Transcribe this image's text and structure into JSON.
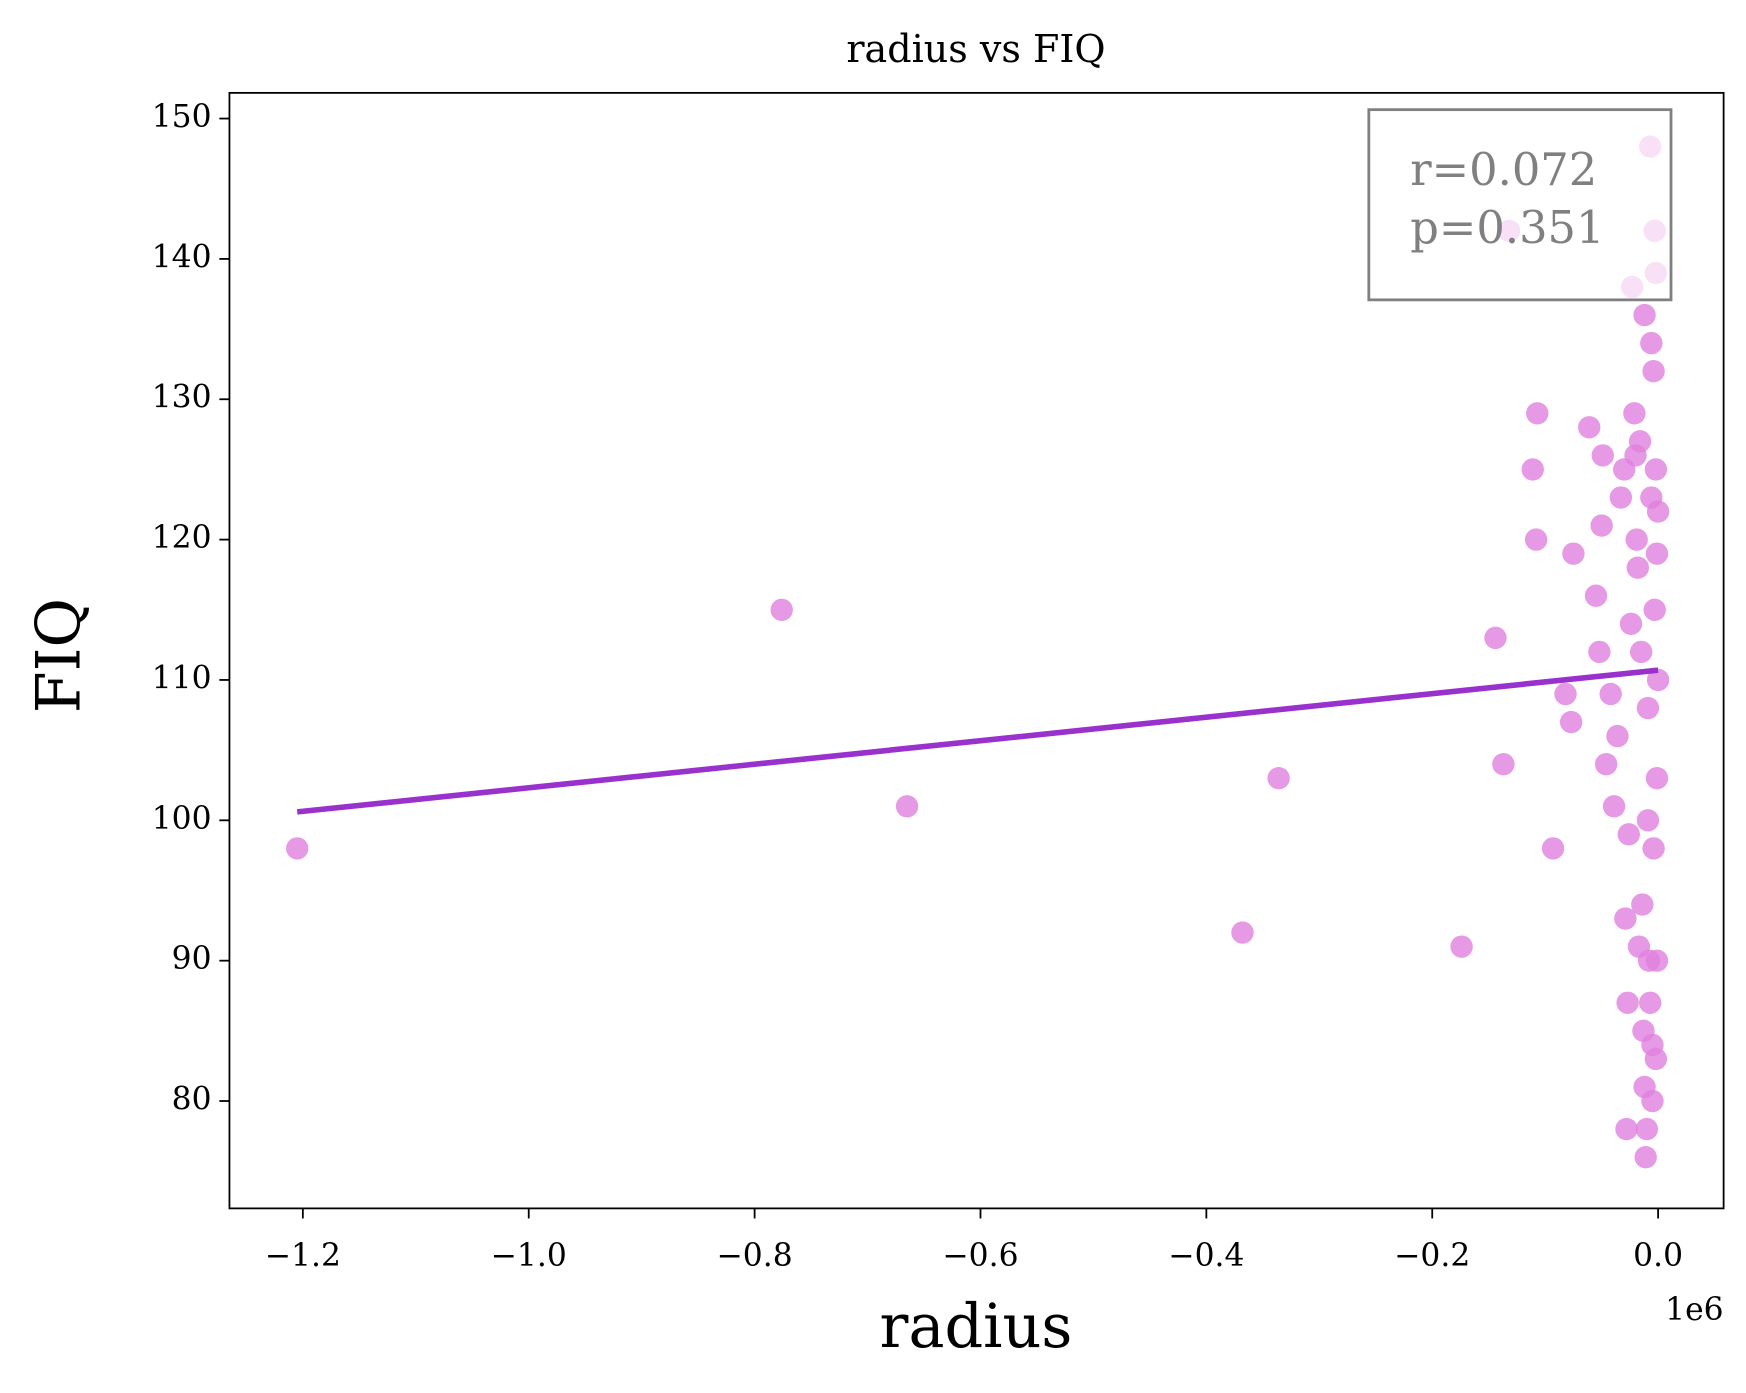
{
  "chart_data": {
    "type": "scatter",
    "title": "radius vs FIQ",
    "x_label": "radius",
    "y_label": "FIQ",
    "x_offset_label": "1e6",
    "annotation": [
      "r=0.072",
      "p=0.351"
    ],
    "xlim": [
      -1.265,
      0.058
    ],
    "ylim": [
      72.35,
      151.83
    ],
    "xticks": [
      {
        "value": -1.2,
        "label": "−1.2"
      },
      {
        "value": -1.0,
        "label": "−1.0"
      },
      {
        "value": -0.8,
        "label": "−0.8"
      },
      {
        "value": -0.6,
        "label": "−0.6"
      },
      {
        "value": -0.4,
        "label": "−0.4"
      },
      {
        "value": -0.2,
        "label": "−0.2"
      },
      {
        "value": 0,
        "label": "0.0"
      }
    ],
    "yticks": [
      80,
      90,
      100,
      110,
      120,
      130,
      140,
      150
    ],
    "color": "#e07fdd",
    "x": [
      -1.205,
      -0.776,
      -0.665,
      -0.368,
      -0.336,
      -0.174,
      -0.144,
      -0.137,
      -0.132,
      -0.107,
      -0.111,
      -0.108,
      -0.093,
      -0.082,
      -0.077,
      -0.075,
      -0.061,
      -0.055,
      -0.052,
      -0.05,
      -0.049,
      -0.046,
      -0.042,
      -0.039,
      -0.036,
      -0.033,
      -0.03,
      -0.029,
      -0.028,
      -0.027,
      -0.026,
      -0.024,
      -0.023,
      -0.021,
      -0.02,
      -0.019,
      -0.018,
      -0.017,
      -0.016,
      -0.015,
      -0.014,
      -0.013,
      -0.012,
      -0.012,
      -0.011,
      -0.01,
      -0.009,
      -0.009,
      -0.008,
      -0.007,
      -0.007,
      -0.006,
      -0.006,
      -0.005,
      -0.005,
      -0.004,
      -0.004,
      -0.003,
      -0.003,
      -0.002,
      -0.002,
      -0.002,
      -0.001,
      -0.001,
      -0.001,
      0,
      0
    ],
    "values": [
      98,
      115,
      101,
      92,
      103,
      91,
      113,
      104,
      142,
      129,
      125,
      120,
      98,
      109,
      107,
      119,
      128,
      116,
      112,
      121,
      126,
      104,
      109,
      101,
      106,
      123,
      125,
      93,
      78,
      87,
      99,
      114,
      138,
      129,
      126,
      120,
      118,
      91,
      127,
      112,
      94,
      85,
      81,
      136,
      76,
      78,
      108,
      100,
      90,
      87,
      148,
      134,
      123,
      84,
      80,
      98,
      132,
      115,
      142,
      83,
      139,
      125,
      103,
      90,
      119,
      110,
      122
    ],
    "fit": {
      "color": "#9932cc",
      "x": [
        -1.205,
        0
      ],
      "values": [
        100.6,
        110.7
      ]
    }
  }
}
